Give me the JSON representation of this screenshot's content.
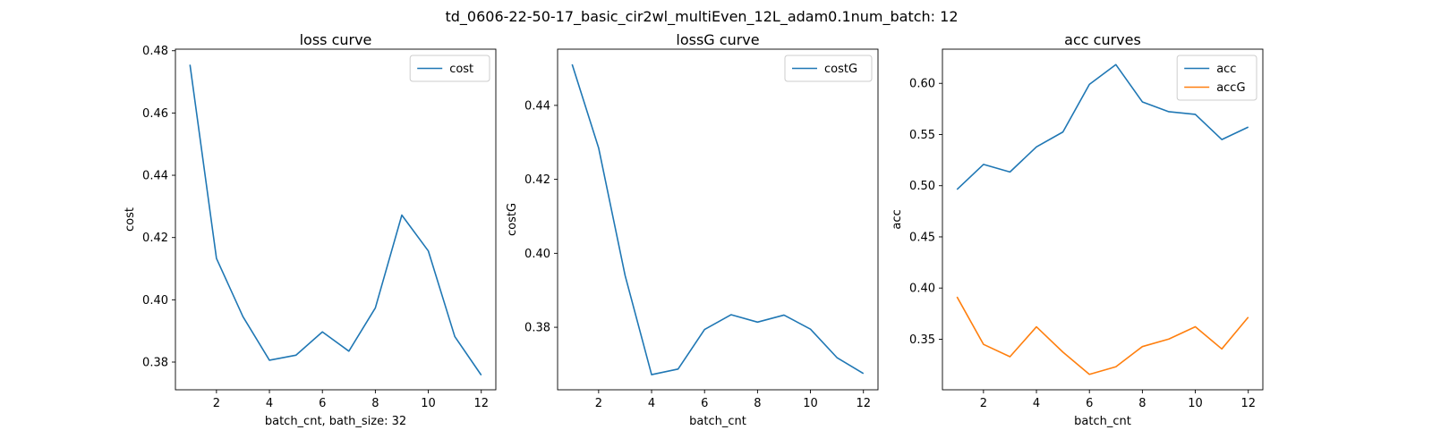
{
  "figure": {
    "suptitle": "td_0606-22-50-17_basic_cir2wl_multiEven_12L_adam0.1num_batch: 12"
  },
  "chart_data": [
    {
      "type": "line",
      "title": "loss curve",
      "xlabel": "batch_cnt, bath_size: 32",
      "ylabel": "cost",
      "x": [
        1,
        2,
        3,
        4,
        5,
        6,
        7,
        8,
        9,
        10,
        11,
        12
      ],
      "xticks": [
        2,
        4,
        6,
        8,
        10,
        12
      ],
      "yticks": [
        0.38,
        0.4,
        0.42,
        0.44,
        0.46,
        0.48
      ],
      "ytick_labels": [
        "0.38",
        "0.40",
        "0.42",
        "0.44",
        "0.46",
        "0.48"
      ],
      "xlim": [
        0.45,
        12.55
      ],
      "ylim": [
        0.3711,
        0.4805
      ],
      "legend_position": "top-right",
      "series": [
        {
          "name": "cost",
          "color": "#1f77b4",
          "values": [
            0.4755,
            0.4133,
            0.3946,
            0.3806,
            0.3822,
            0.3897,
            0.3835,
            0.3974,
            0.4272,
            0.4157,
            0.3882,
            0.3758
          ]
        }
      ]
    },
    {
      "type": "line",
      "title": "lossG curve",
      "xlabel": "batch_cnt",
      "ylabel": "costG",
      "x": [
        1,
        2,
        3,
        4,
        5,
        6,
        7,
        8,
        9,
        10,
        11,
        12
      ],
      "xticks": [
        2,
        4,
        6,
        8,
        10,
        12
      ],
      "yticks": [
        0.38,
        0.4,
        0.42,
        0.44
      ],
      "ytick_labels": [
        "0.38",
        "0.40",
        "0.42",
        "0.44"
      ],
      "xlim": [
        0.45,
        12.55
      ],
      "ylim": [
        0.3631,
        0.4552
      ],
      "legend_position": "top-right",
      "series": [
        {
          "name": "costG",
          "color": "#1f77b4",
          "values": [
            0.4511,
            0.4285,
            0.394,
            0.3672,
            0.3687,
            0.3794,
            0.3834,
            0.3814,
            0.3833,
            0.3795,
            0.3718,
            0.3675
          ]
        }
      ]
    },
    {
      "type": "line",
      "title": "acc curves",
      "xlabel": "batch_cnt",
      "ylabel": "acc",
      "x": [
        1,
        2,
        3,
        4,
        5,
        6,
        7,
        8,
        9,
        10,
        11,
        12
      ],
      "xticks": [
        2,
        4,
        6,
        8,
        10,
        12
      ],
      "yticks": [
        0.35,
        0.4,
        0.45,
        0.5,
        0.55,
        0.6
      ],
      "ytick_labels": [
        "0.35",
        "0.40",
        "0.45",
        "0.50",
        "0.55",
        "0.60"
      ],
      "xlim": [
        0.45,
        12.55
      ],
      "ylim": [
        0.3006,
        0.6334
      ],
      "legend_position": "top-right",
      "series": [
        {
          "name": "acc",
          "color": "#1f77b4",
          "values": [
            0.4963,
            0.5208,
            0.5134,
            0.5379,
            0.5525,
            0.599,
            0.6183,
            0.5819,
            0.5723,
            0.5697,
            0.5451,
            0.5573
          ]
        },
        {
          "name": "accG",
          "color": "#ff7f0e",
          "values": [
            0.3914,
            0.345,
            0.3329,
            0.3621,
            0.3374,
            0.3157,
            0.3231,
            0.3428,
            0.3502,
            0.3622,
            0.3405,
            0.3716
          ]
        }
      ]
    }
  ]
}
